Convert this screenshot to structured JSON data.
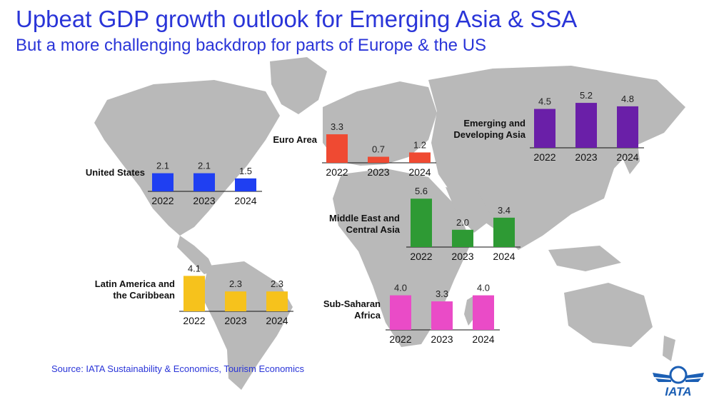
{
  "title": "Upbeat GDP growth outlook for Emerging Asia & SSA",
  "subtitle": "But a more challenging backdrop for parts of Europe & the US",
  "source": "Source: IATA Sustainability & Economics, Tourism Economics",
  "logo_text": "IATA",
  "colors": {
    "text_blue": "#2a35d8",
    "map": "#b9b9b9",
    "logo": "#1c5fb4"
  },
  "chart_data": [
    {
      "type": "bar",
      "region": "United States",
      "categories": [
        "2022",
        "2023",
        "2024"
      ],
      "values": [
        2.1,
        2.1,
        1.5
      ],
      "color": "#1f3ff2"
    },
    {
      "type": "bar",
      "region": "Euro Area",
      "categories": [
        "2022",
        "2023",
        "2024"
      ],
      "values": [
        3.3,
        0.7,
        1.2
      ],
      "color": "#ef4a32"
    },
    {
      "type": "bar",
      "region": "Emerging and Developing Asia",
      "categories": [
        "2022",
        "2023",
        "2024"
      ],
      "values": [
        4.5,
        5.2,
        4.8
      ],
      "color": "#6a1fa8"
    },
    {
      "type": "bar",
      "region": "Middle East and Central Asia",
      "categories": [
        "2022",
        "2023",
        "2024"
      ],
      "values": [
        5.6,
        2.0,
        3.4
      ],
      "color": "#2e9a34"
    },
    {
      "type": "bar",
      "region": "Latin America and the Caribbean",
      "categories": [
        "2022",
        "2023",
        "2024"
      ],
      "values": [
        4.1,
        2.3,
        2.3
      ],
      "color": "#f6c21c"
    },
    {
      "type": "bar",
      "region": "Sub-Saharan Africa",
      "categories": [
        "2022",
        "2023",
        "2024"
      ],
      "values": [
        4.0,
        3.3,
        4.0
      ],
      "color": "#ea4bc7"
    }
  ]
}
